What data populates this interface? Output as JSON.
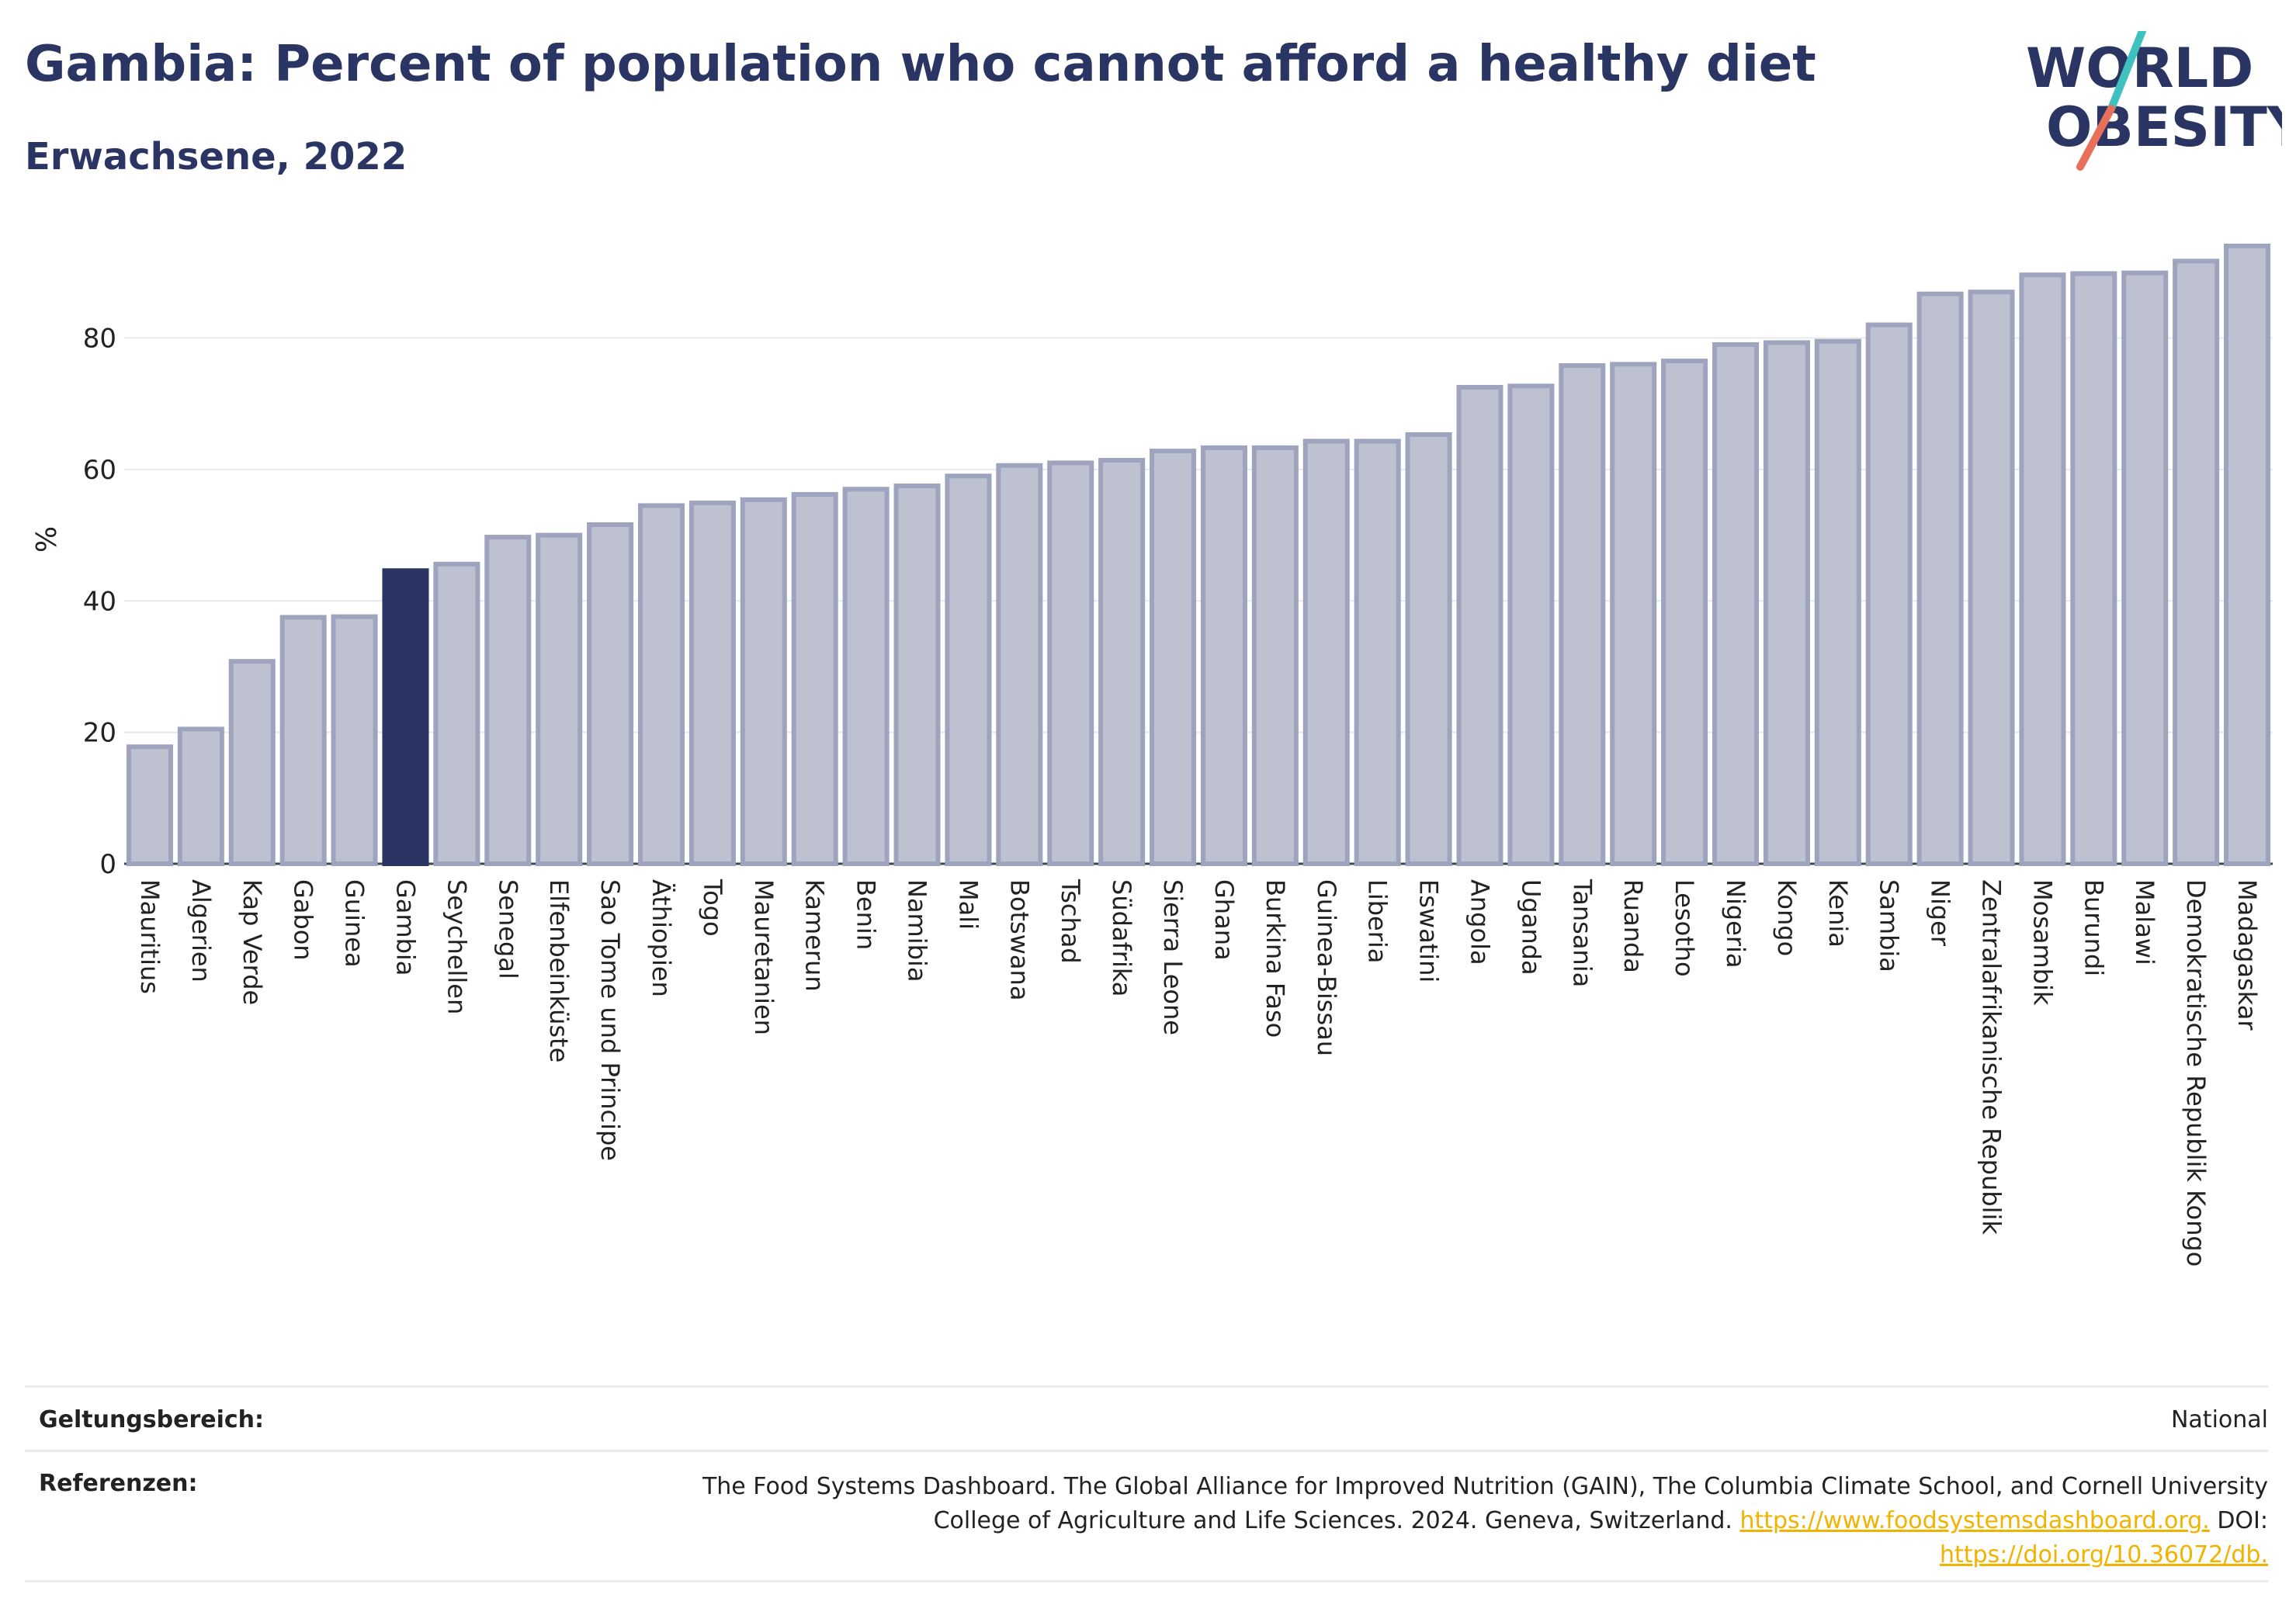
{
  "header": {
    "title": "Gambia: Percent of population who cannot afford a healthy diet",
    "subtitle": "Erwachsene, 2022"
  },
  "logo": {
    "line1": "WORLD",
    "line2": "OBESITY"
  },
  "colors": {
    "bar": "#bdc1d0",
    "bar_stroke": "#9ea4bd",
    "highlight": "#2b3563",
    "grid": "#e6e8ee"
  },
  "chart_data": {
    "type": "bar",
    "ylabel": "%",
    "ylim": [
      0,
      96
    ],
    "yticks": [
      0,
      20,
      40,
      60,
      80
    ],
    "highlight": "Gambia",
    "categories": [
      "Mauritius",
      "Algerien",
      "Kap Verde",
      "Gabon",
      "Guinea",
      "Gambia",
      "Seychellen",
      "Senegal",
      "Elfenbeinküste",
      "Sao Tome und Principe",
      "Äthiopien",
      "Togo",
      "Mauretanien",
      "Kamerun",
      "Benin",
      "Namibia",
      "Mali",
      "Botswana",
      "Tschad",
      "Südafrika",
      "Sierra Leone",
      "Ghana",
      "Burkina Faso",
      "Guinea-Bissau",
      "Liberia",
      "Eswatini",
      "Angola",
      "Uganda",
      "Tansania",
      "Ruanda",
      "Lesotho",
      "Nigeria",
      "Kongo",
      "Kenia",
      "Sambia",
      "Niger",
      "Zentralafrikanische Republik",
      "Mosambik",
      "Burundi",
      "Malawi",
      "Demokratische Republik Kongo",
      "Madagaskar"
    ],
    "values": [
      17.8,
      20.5,
      30.8,
      37.5,
      37.6,
      44.6,
      45.6,
      49.7,
      50.0,
      51.6,
      54.5,
      54.9,
      55.4,
      56.2,
      57.0,
      57.5,
      59.0,
      60.6,
      61.0,
      61.4,
      62.8,
      63.3,
      63.3,
      64.3,
      64.3,
      65.3,
      72.5,
      72.7,
      75.8,
      76.0,
      76.5,
      79.0,
      79.3,
      79.5,
      82.0,
      86.7,
      87.0,
      89.6,
      89.8,
      89.9,
      91.7,
      94.0
    ]
  },
  "footer": {
    "scope_label": "Geltungsbereich:",
    "scope_value": "National",
    "ref_label": "Referenzen:",
    "ref_line1": "The Food Systems Dashboard. The Global Alliance for Improved Nutrition (GAIN), The Columbia Climate School, and Cornell University",
    "ref_line2": "College of Agriculture and Life Sciences. 2024. Geneva, Switzerland.",
    "ref_link1": "https://www.foodsystemsdashboard.org.",
    "ref_doi": "DOI:",
    "ref_link2": "https://doi.org/10.36072/db."
  }
}
